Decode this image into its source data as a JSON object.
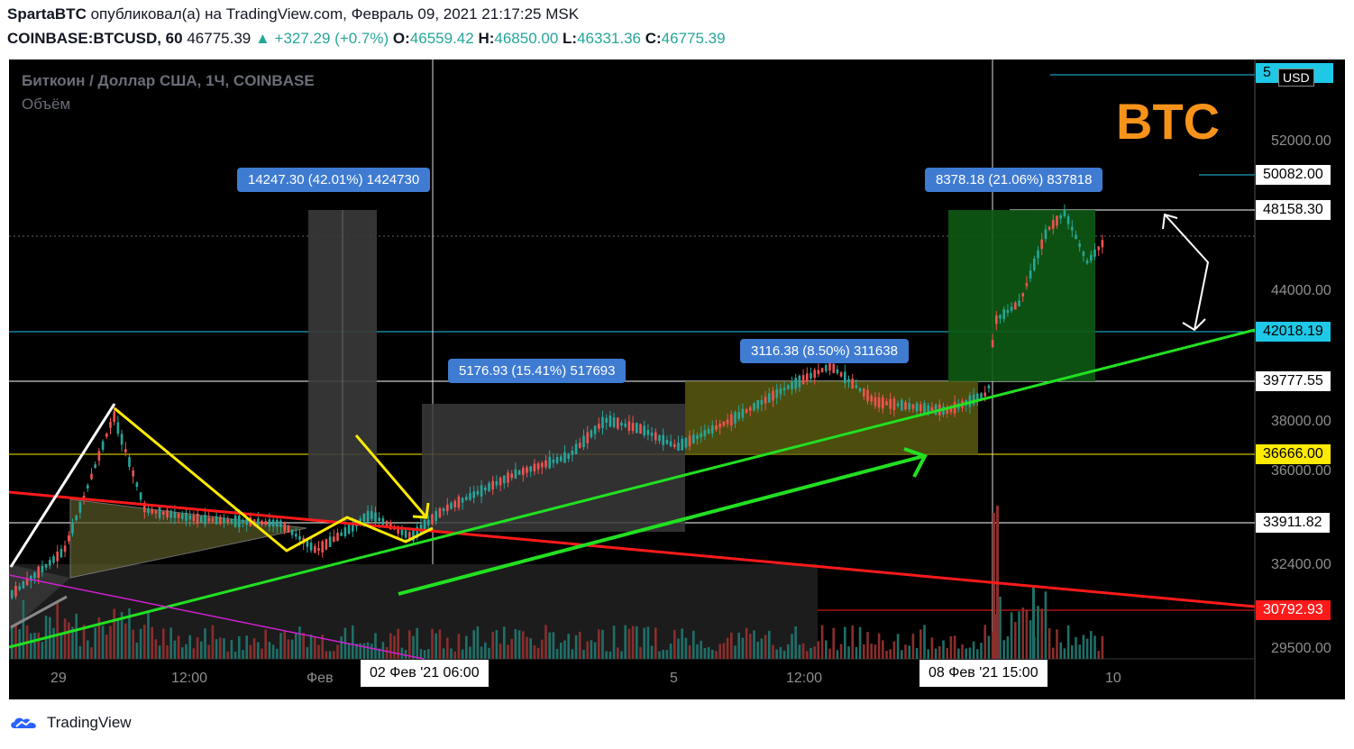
{
  "header": {
    "author": "SpartaBTC",
    "published_text": "опубликовал(а) на TradingView.com, Февраль 09, 2021 21:17:25 MSK",
    "symbol": "COINBASE:BTCUSD, 60",
    "last": "46775.39",
    "change": "▲ +327.29 (+0.7%)",
    "o_label": "O:",
    "o_value": "46559.42",
    "h_label": "H:",
    "h_value": "46850.00",
    "l_label": "L:",
    "l_value": "46331.36",
    "c_label": "C:",
    "c_value": "46775.39"
  },
  "legend": {
    "title": "Биткоин / Доллар США, 1Ч, COINBASE",
    "volume": "Объём"
  },
  "annotation": {
    "btc_text": "BTC"
  },
  "measures": [
    {
      "text": "14247.30 (42.01%) 1424730"
    },
    {
      "text": "5176.93 (15.41%) 517693"
    },
    {
      "text": "3116.38 (8.50%) 311638"
    },
    {
      "text": "8378.18 (21.06%) 837818"
    }
  ],
  "price_axis": {
    "currency": "USD",
    "ticks": [
      "52000.00",
      "44000.00",
      "38000.00",
      "36000.00",
      "32400.00",
      "29500.00"
    ],
    "top_partial": "5",
    "level_labels": [
      "50082.00",
      "48158.30",
      "42018.19",
      "39777.55",
      "36666.00",
      "33911.82",
      "30792.93"
    ]
  },
  "time_axis": {
    "ticks": [
      "29",
      "12:00",
      "Фев",
      "5",
      "12:00",
      "10"
    ],
    "highlight_1": "02 Фев '21   06:00",
    "highlight_2": "08 Фев '21   15:00"
  },
  "footer": {
    "brand": "TradingView"
  },
  "colors": {
    "up": "#26a69a",
    "down": "#ef5350",
    "accent_btc": "#f7931a",
    "trend_green": "#22e022",
    "trend_red": "#ff1a1a",
    "yellow": "#ffea00",
    "measure_blue": "#3f7bd1"
  }
}
